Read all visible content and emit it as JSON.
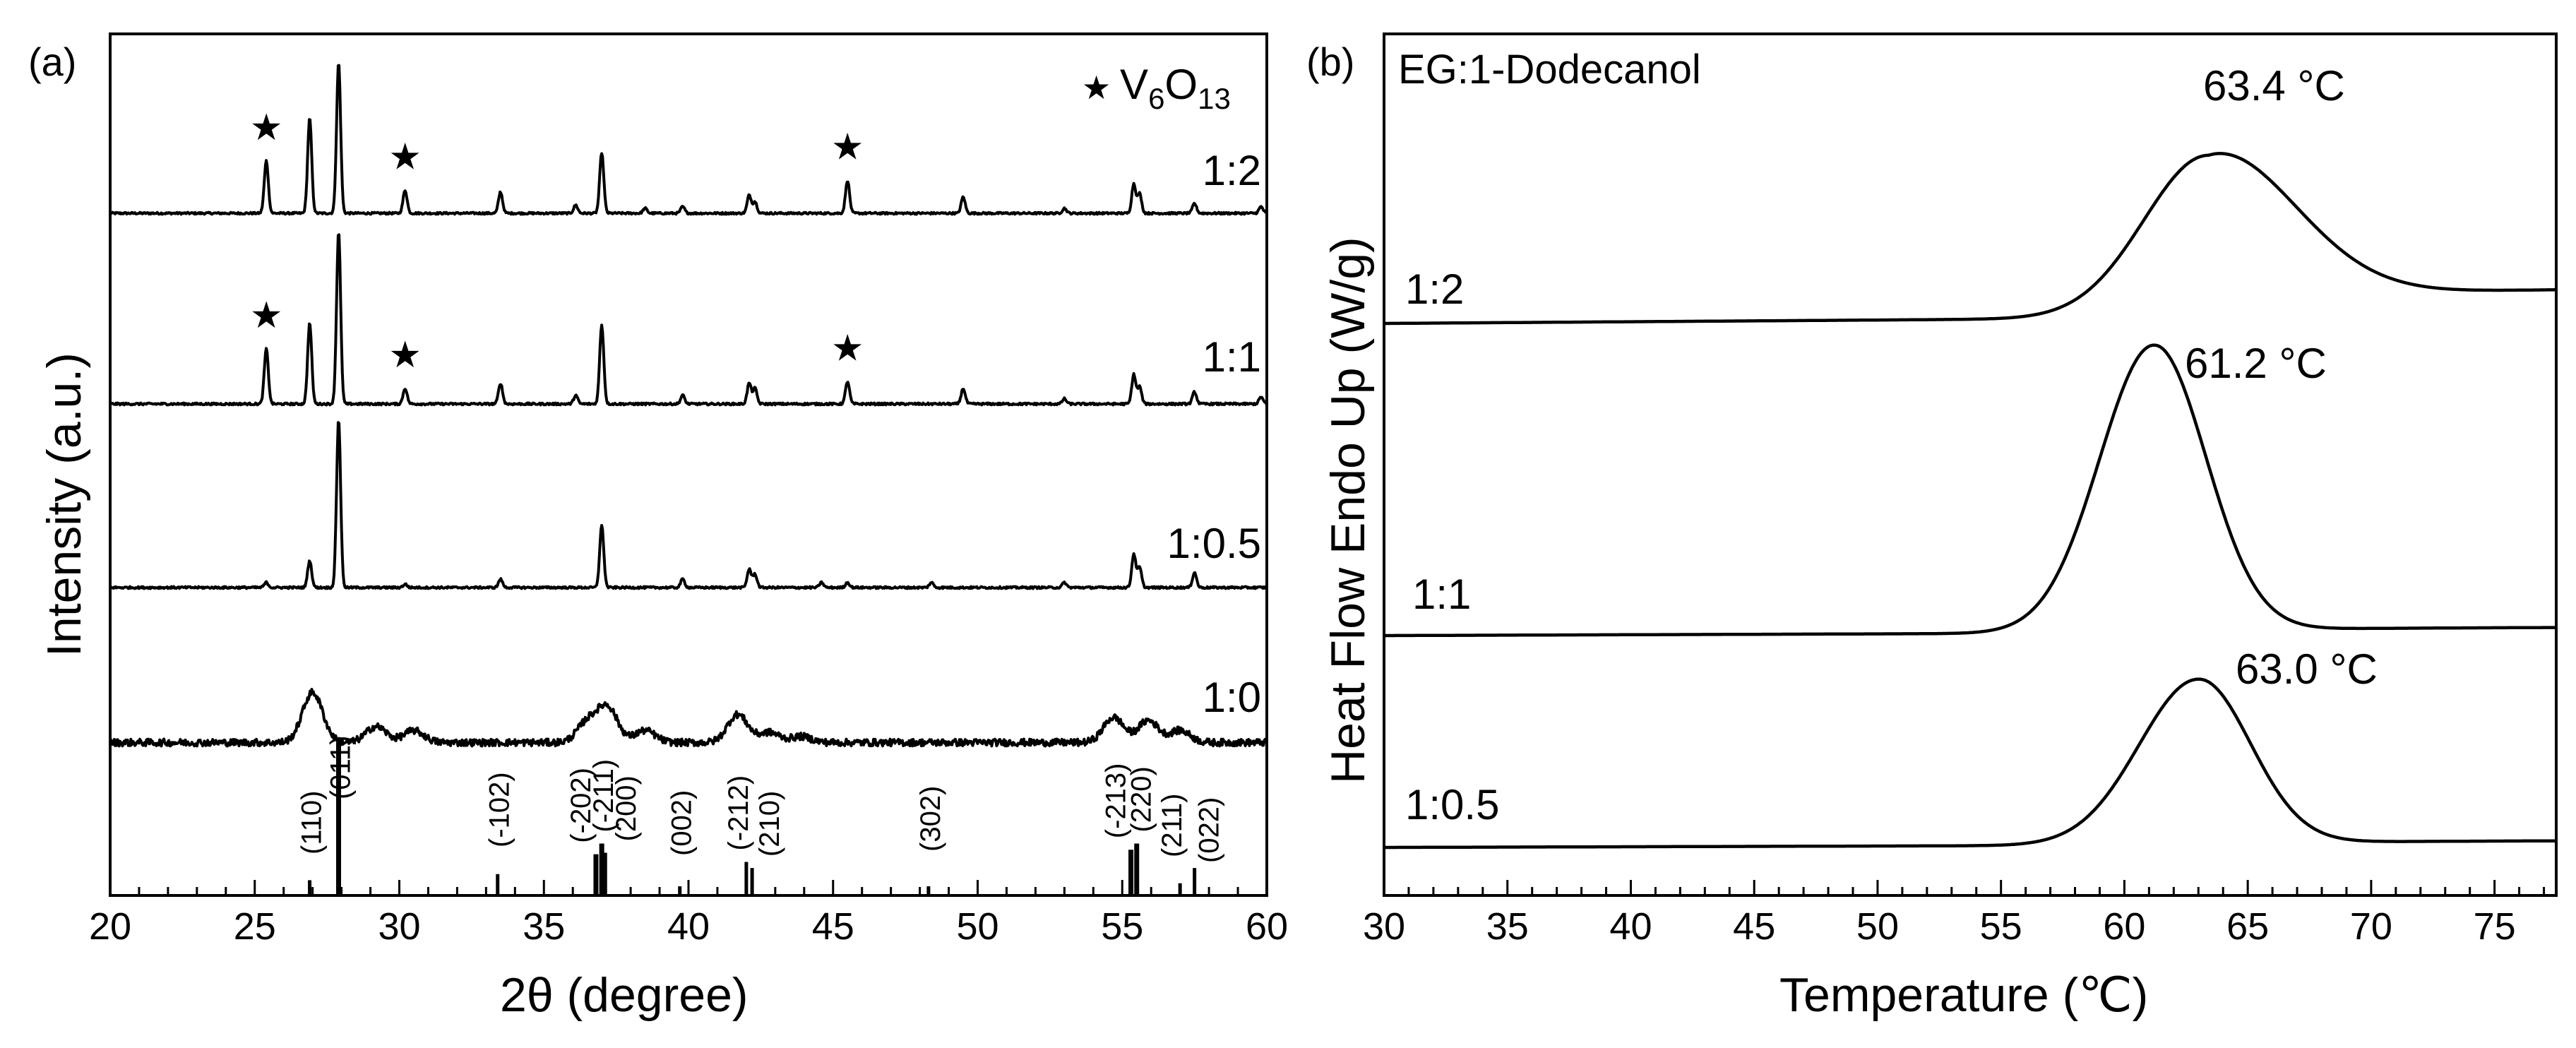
{
  "chart_data": [
    {
      "type": "line",
      "panel_label": "(a)",
      "title": "",
      "xlabel": "2θ (degree)",
      "ylabel": "Intensity (a.u.)",
      "xlim": [
        20,
        60
      ],
      "xticks": [
        "20",
        "25",
        "30",
        "35",
        "40",
        "45",
        "50",
        "55",
        "60"
      ],
      "legend": {
        "marker": "★",
        "label_base": "V",
        "label_sub1": "6",
        "label_mid": "O",
        "label_sub2": "13",
        "position": "top-right"
      },
      "series": [
        {
          "name": "1:2",
          "peaks": [
            [
              25.4,
              0.32
            ],
            [
              26.9,
              0.58
            ],
            [
              27.9,
              0.92
            ],
            [
              30.2,
              0.14
            ],
            [
              33.5,
              0.13
            ],
            [
              36.1,
              0.05
            ],
            [
              37.0,
              0.37
            ],
            [
              38.5,
              0.03
            ],
            [
              39.8,
              0.04
            ],
            [
              42.1,
              0.11
            ],
            [
              42.3,
              0.07
            ],
            [
              45.5,
              0.2
            ],
            [
              49.5,
              0.1
            ],
            [
              53.0,
              0.03
            ],
            [
              55.4,
              0.18
            ],
            [
              55.6,
              0.12
            ],
            [
              57.5,
              0.06
            ],
            [
              59.8,
              0.04
            ]
          ],
          "star_positions": [
            25.4,
            30.2,
            45.5
          ]
        },
        {
          "name": "1:1",
          "peaks": [
            [
              25.4,
              0.32
            ],
            [
              26.9,
              0.47
            ],
            [
              27.9,
              1.0
            ],
            [
              30.2,
              0.09
            ],
            [
              33.5,
              0.12
            ],
            [
              36.1,
              0.05
            ],
            [
              37.0,
              0.46
            ],
            [
              39.8,
              0.05
            ],
            [
              42.1,
              0.12
            ],
            [
              42.3,
              0.09
            ],
            [
              45.5,
              0.13
            ],
            [
              49.5,
              0.09
            ],
            [
              53.0,
              0.03
            ],
            [
              55.4,
              0.17
            ],
            [
              55.6,
              0.1
            ],
            [
              57.5,
              0.07
            ],
            [
              59.8,
              0.04
            ]
          ],
          "star_positions": [
            25.4,
            30.2,
            45.5
          ]
        },
        {
          "name": "1:0.5",
          "peaks": [
            [
              25.4,
              0.03
            ],
            [
              26.9,
              0.16
            ],
            [
              27.9,
              1.0
            ],
            [
              30.2,
              0.02
            ],
            [
              33.5,
              0.05
            ],
            [
              37.0,
              0.37
            ],
            [
              39.8,
              0.05
            ],
            [
              42.1,
              0.11
            ],
            [
              42.3,
              0.08
            ],
            [
              44.6,
              0.03
            ],
            [
              45.5,
              0.03
            ],
            [
              48.4,
              0.03
            ],
            [
              53.0,
              0.03
            ],
            [
              55.4,
              0.2
            ],
            [
              55.6,
              0.12
            ],
            [
              57.5,
              0.09
            ]
          ],
          "star_positions": []
        },
        {
          "name": "1:0",
          "broad_peaks": [
            [
              27.0,
              0.5
            ],
            [
              29.2,
              0.16
            ],
            [
              30.5,
              0.12
            ],
            [
              36.5,
              0.2
            ],
            [
              37.2,
              0.35
            ],
            [
              38.5,
              0.12
            ],
            [
              41.7,
              0.28
            ],
            [
              42.8,
              0.1
            ],
            [
              43.9,
              0.06
            ],
            [
              54.7,
              0.25
            ],
            [
              55.9,
              0.22
            ],
            [
              57.0,
              0.12
            ]
          ],
          "star_positions": []
        }
      ],
      "reference_lines": [
        {
          "label": "(110)",
          "x": 26.9,
          "h": 0.1
        },
        {
          "label": "(011)",
          "x": 27.9,
          "h": 1.0
        },
        {
          "label": "(-102)",
          "x": 33.4,
          "h": 0.14
        },
        {
          "label": "(-202)",
          "x": 36.8,
          "h": 0.27
        },
        {
          "label": "(-211)",
          "x": 37.0,
          "h": 0.34
        },
        {
          "label": "(200)",
          "x": 37.1,
          "h": 0.28
        },
        {
          "label": "(002)",
          "x": 39.7,
          "h": 0.06
        },
        {
          "label": "(-212)",
          "x": 42.0,
          "h": 0.22
        },
        {
          "label": "(210)",
          "x": 42.2,
          "h": 0.18
        },
        {
          "label": "(302)",
          "x": 48.3,
          "h": 0.06
        },
        {
          "label": "(-213)",
          "x": 55.3,
          "h": 0.3
        },
        {
          "label": "(220)",
          "x": 55.5,
          "h": 0.34
        },
        {
          "label": "(211)",
          "x": 57.0,
          "h": 0.08
        },
        {
          "label": "(022)",
          "x": 57.5,
          "h": 0.18
        }
      ]
    },
    {
      "type": "line",
      "panel_label": "(b)",
      "title": "EG:1-Dodecanol",
      "xlabel": "Temperature (℃)",
      "ylabel": "Heat Flow Endo Up (W/g)",
      "xlim": [
        30,
        77.5
      ],
      "xticks": [
        "30",
        "35",
        "40",
        "45",
        "50",
        "55",
        "60",
        "65",
        "70",
        "75"
      ],
      "series": [
        {
          "name": "1:2",
          "peak_temp": 63.4,
          "peak_label": "63.4 °C",
          "peak_height": 1.0,
          "width_left": 2.6,
          "width_right": 3.4,
          "end_offset": 0.16,
          "baseline_slope": 0.05
        },
        {
          "name": "1:1",
          "peak_temp": 61.2,
          "peak_label": "61.2 °C",
          "peak_height": 1.42,
          "width_left": 2.2,
          "width_right": 2.1,
          "end_offset": 0.02,
          "baseline_slope": 0.02
        },
        {
          "name": "1:0.5",
          "peak_temp": 63.0,
          "peak_label": "63.0 °C",
          "peak_height": 1.0,
          "width_left": 2.4,
          "width_right": 2.1,
          "end_offset": 0.02,
          "baseline_slope": 0.02
        }
      ]
    }
  ]
}
